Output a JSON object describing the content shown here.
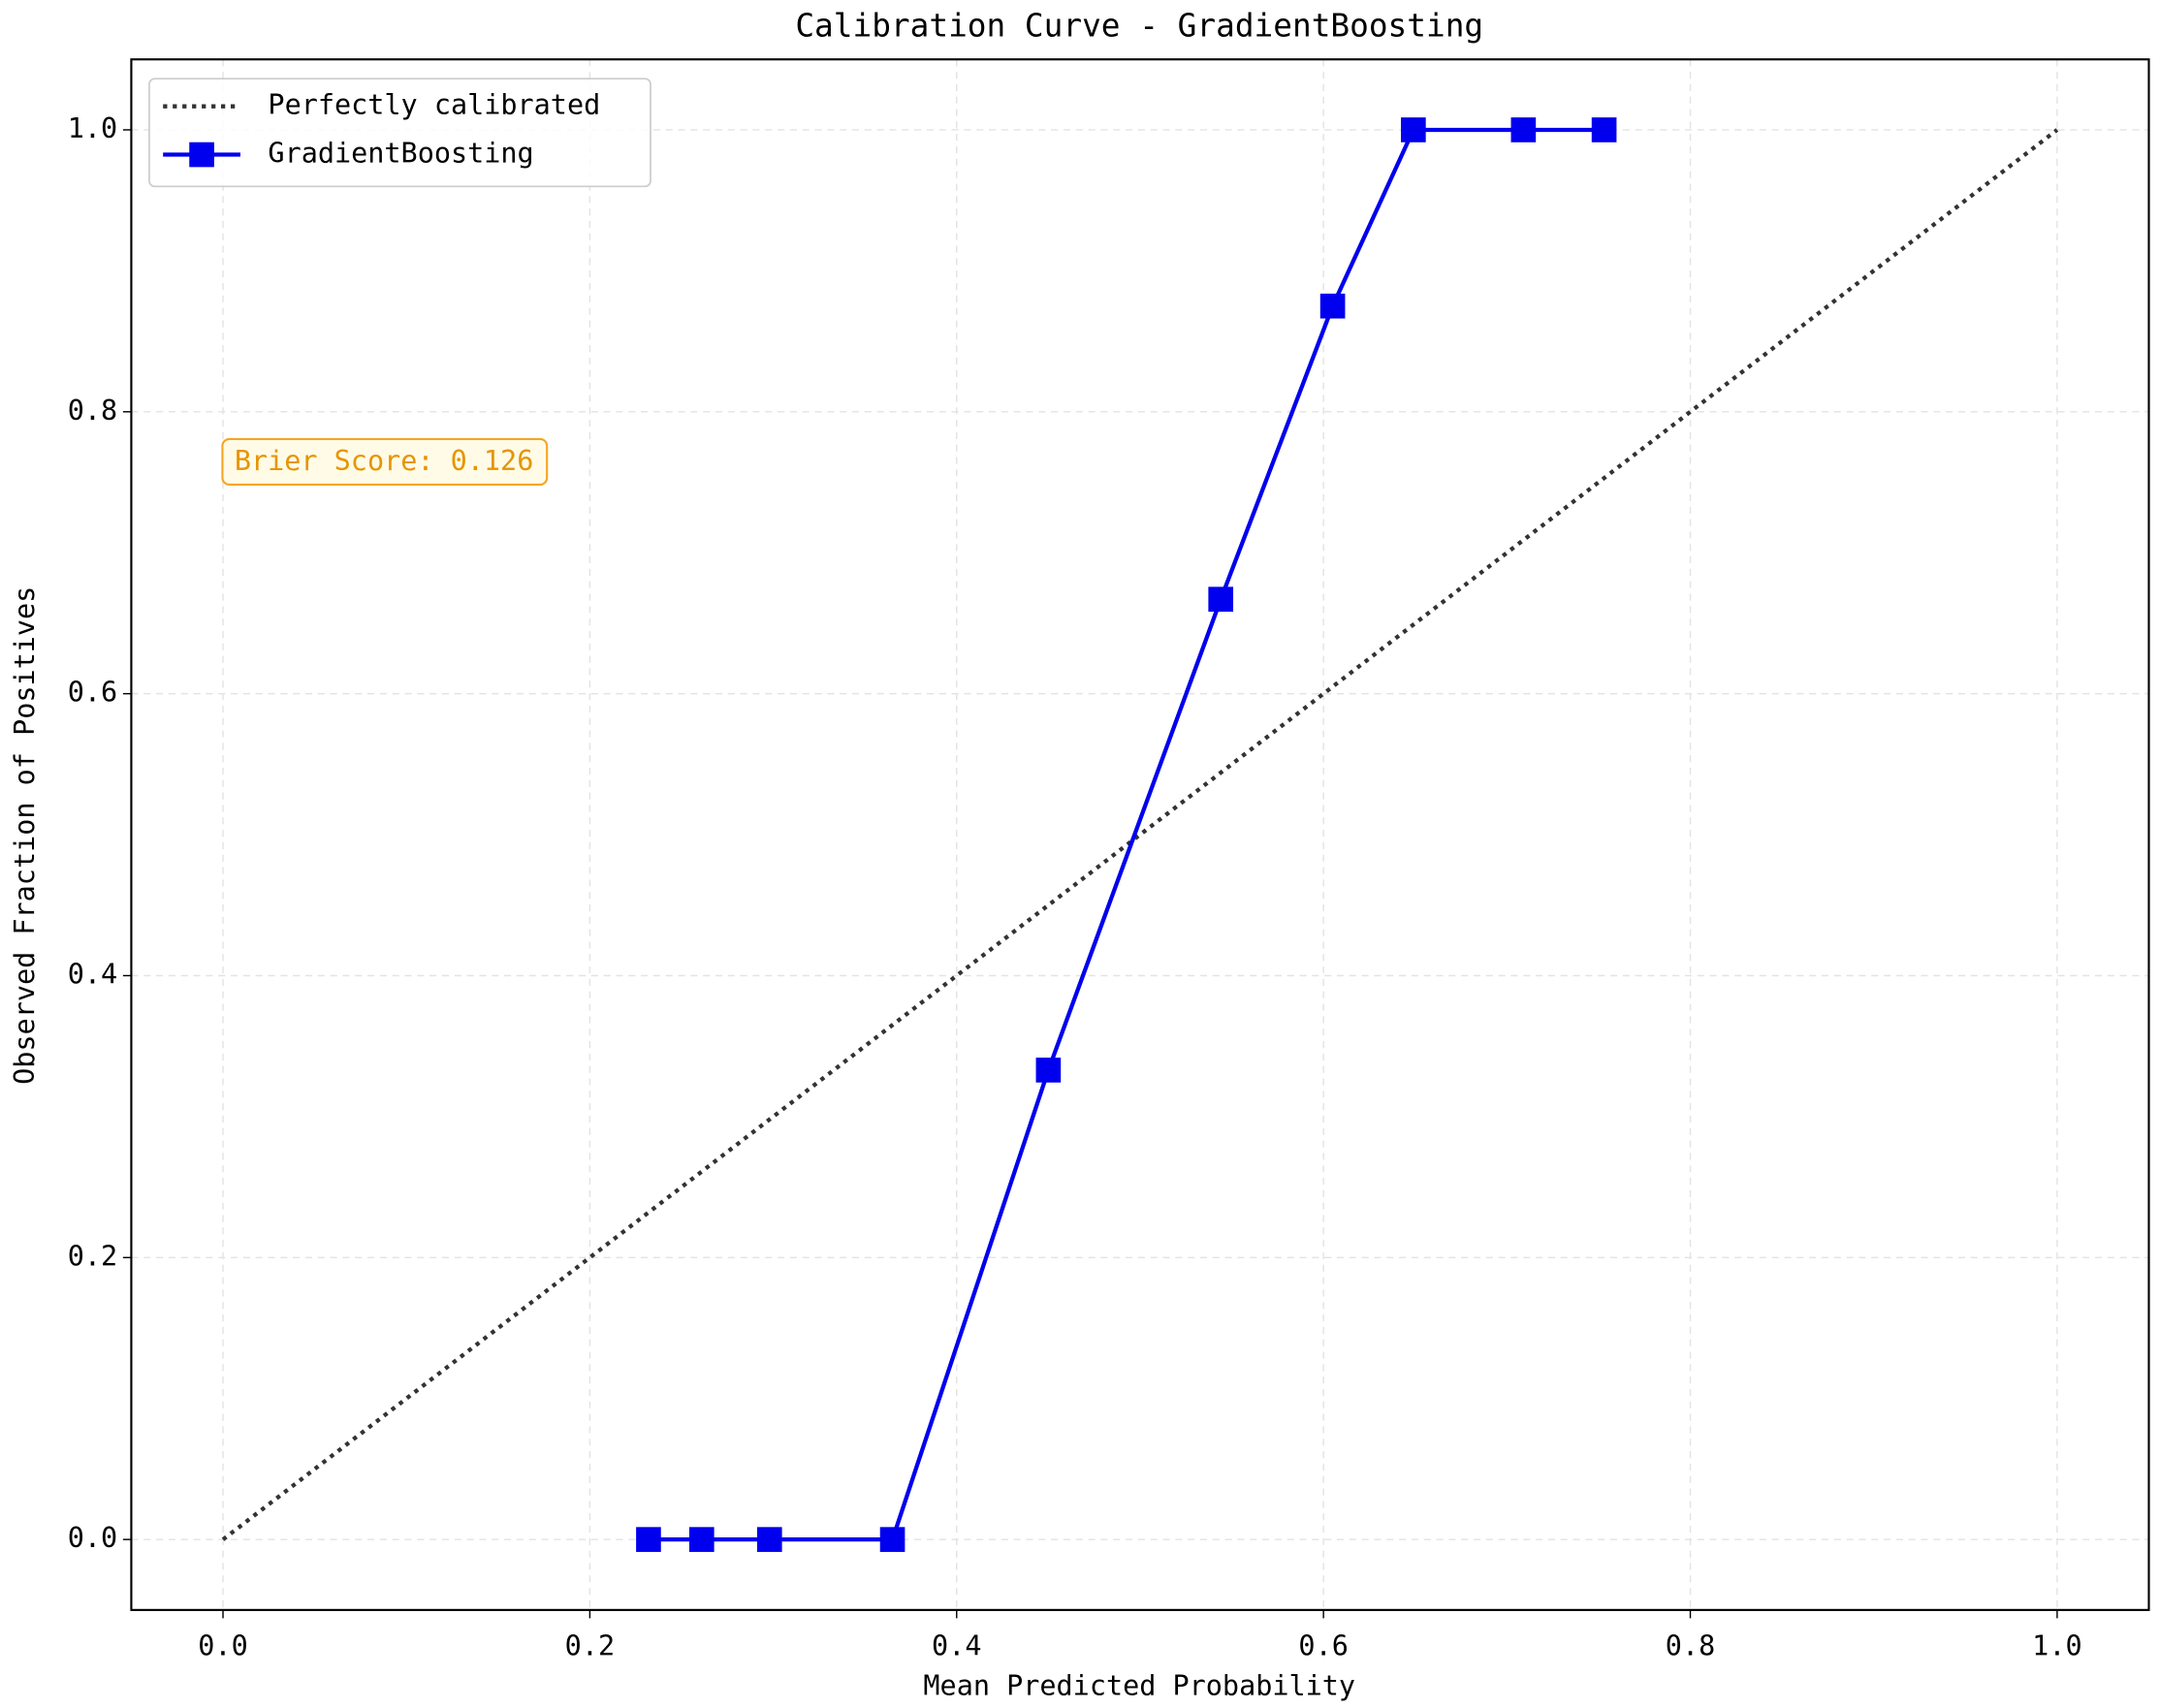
{
  "chart_data": {
    "type": "line",
    "title": "Calibration Curve - GradientBoosting",
    "xlabel": "Mean Predicted Probability",
    "ylabel": "Observed Fraction of Positives",
    "xlim": [
      -0.05,
      1.05
    ],
    "ylim": [
      -0.05,
      1.05
    ],
    "xticks": [
      {
        "value": 0,
        "label": "0.0"
      },
      0.2,
      0.4,
      0.6,
      0.8,
      {
        "value": 1,
        "label": "1.0"
      }
    ],
    "yticks": [
      {
        "value": 0,
        "label": "0.0"
      },
      0.2,
      0.4,
      0.6,
      0.8,
      {
        "value": 1,
        "label": "1.0"
      }
    ],
    "grid": true,
    "legend": "upper left",
    "series": [
      {
        "name": "Perfectly calibrated",
        "color": "#333333",
        "style": "dotted",
        "x": [
          0,
          1
        ],
        "values": [
          0,
          1
        ]
      },
      {
        "name": "GradientBoosting",
        "color": "#0000ee",
        "style": "solid",
        "marker": "square",
        "x": [
          0.232,
          0.261,
          0.298,
          0.365,
          0.45,
          0.544,
          0.605,
          0.649,
          0.709,
          0.753
        ],
        "values": [
          0,
          0,
          0,
          0,
          0.333,
          0.667,
          0.875,
          1,
          1,
          1
        ]
      }
    ],
    "annotation": "Brier Score: 0.126"
  }
}
